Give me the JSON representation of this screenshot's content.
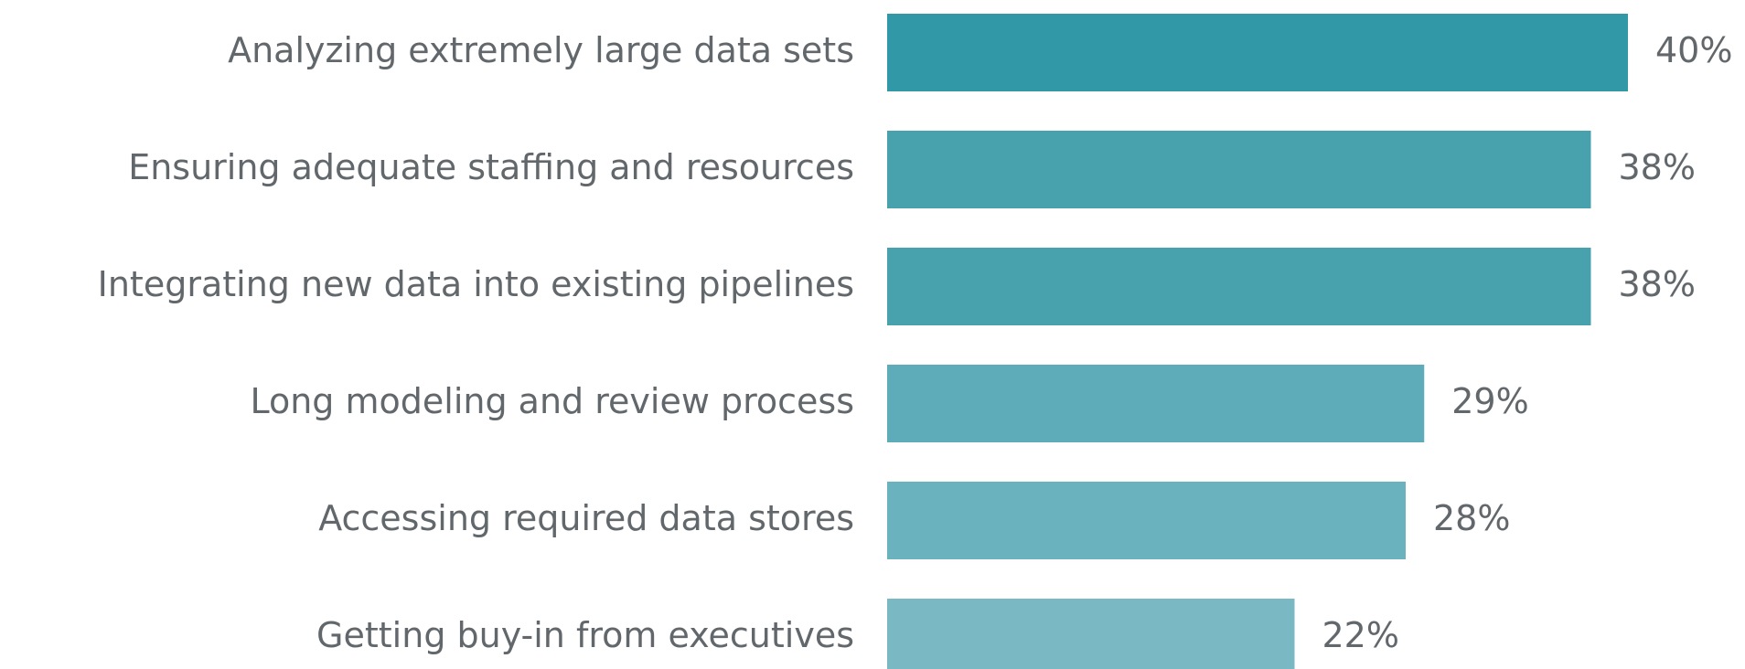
{
  "chart_data": {
    "type": "bar",
    "categories": [
      "Analyzing extremely large data sets",
      "Ensuring adequate staffing and resources",
      "Integrating new data into existing pipelines",
      "Long modeling and review process",
      "Accessing required data stores",
      "Getting buy-in from executives"
    ],
    "values": [
      40,
      38,
      38,
      29,
      28,
      22
    ],
    "value_labels": [
      "40%",
      "38%",
      "38%",
      "29%",
      "28%",
      "22%"
    ],
    "colors": [
      "#3198a8",
      "#47a2ae",
      "#47a2ae",
      "#5eacb9",
      "#6ab2be",
      "#7ab9c4"
    ]
  }
}
